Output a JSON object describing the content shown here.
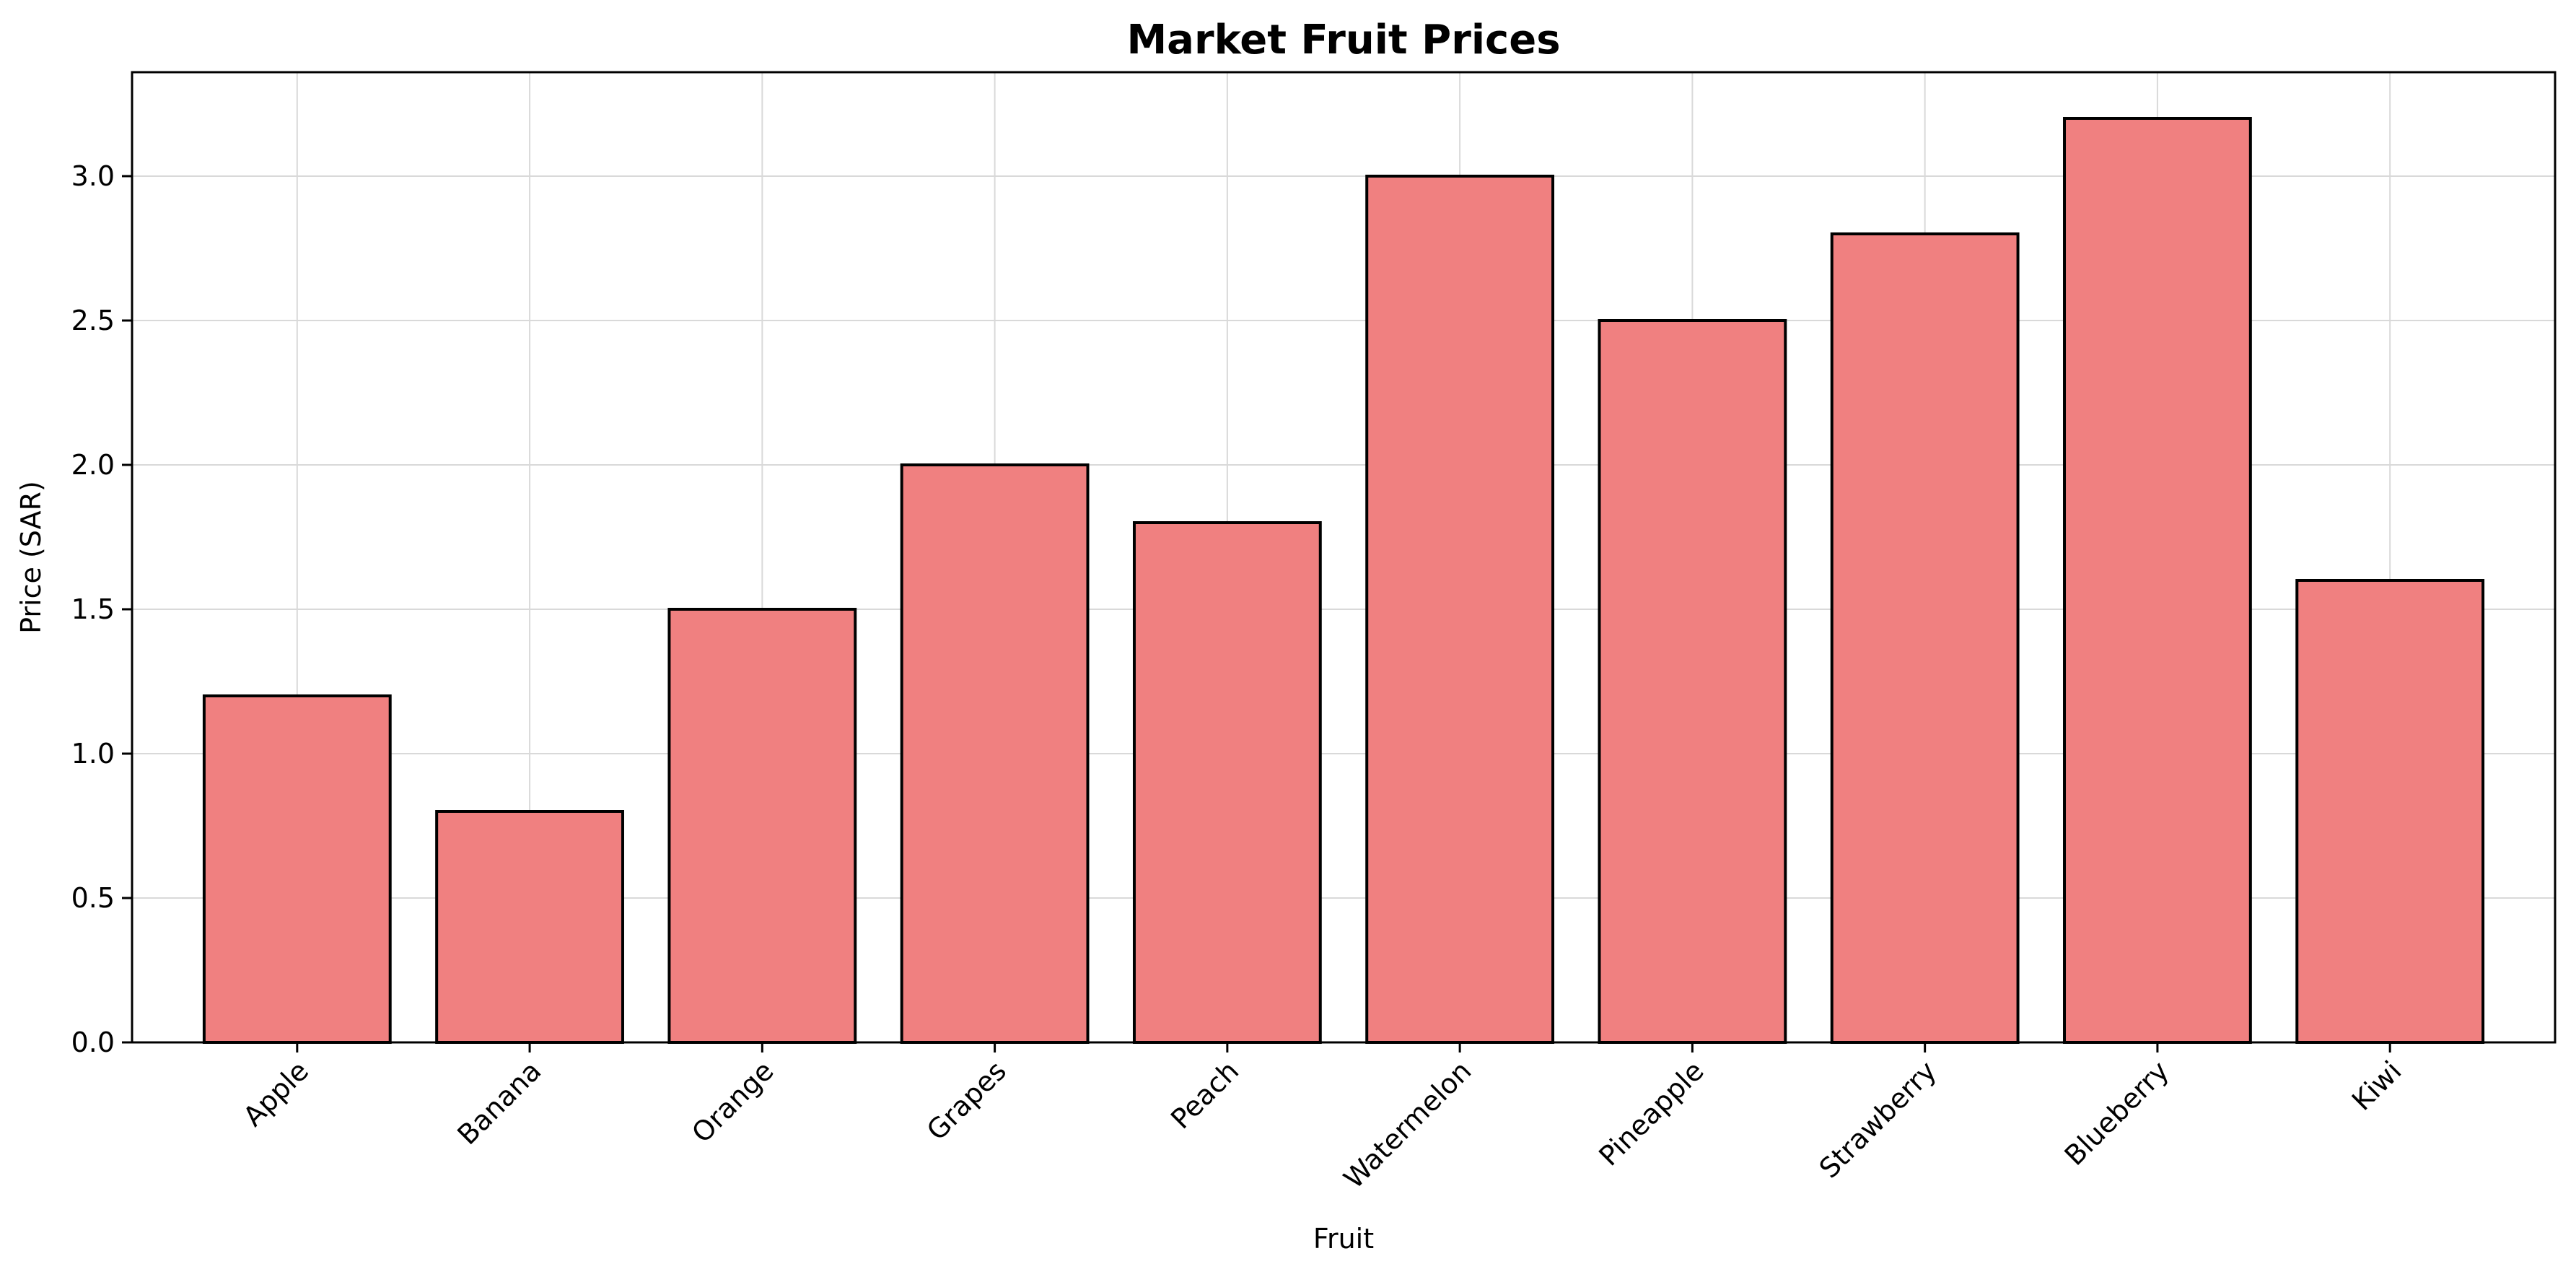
{
  "chart_data": {
    "type": "bar",
    "title": "Market Fruit Prices",
    "xlabel": "Fruit",
    "ylabel": "Price (SAR)",
    "categories": [
      "Apple",
      "Banana",
      "Orange",
      "Grapes",
      "Peach",
      "Watermelon",
      "Pineapple",
      "Strawberry",
      "Blueberry",
      "Kiwi"
    ],
    "values": [
      1.2,
      0.8,
      1.5,
      2.0,
      1.8,
      3.0,
      2.5,
      2.8,
      3.2,
      1.6
    ],
    "ylim": [
      0,
      3.36
    ],
    "yticks": [
      "0.0",
      "0.5",
      "1.0",
      "1.5",
      "2.0",
      "2.5",
      "3.0"
    ],
    "grid": true,
    "colors": {
      "bar_fill": "#f08080",
      "bar_edge": "#000000",
      "grid": "#d9d9d9"
    }
  }
}
